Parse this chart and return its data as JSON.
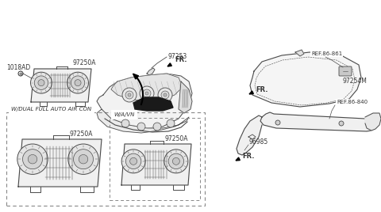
{
  "bg_color": "#ffffff",
  "lc": "#4a4a4a",
  "lc2": "#333333",
  "bc": "#000000",
  "dc": "#888888",
  "parts": {
    "label_97253": "97253",
    "label_97250A": "97250A",
    "label_1018AD": "1018AD",
    "label_97254M": "97254M",
    "label_ref861": "REF.86-861",
    "label_ref840": "REF.86-840",
    "label_96985": "96985",
    "label_dual": "W/DUAL FULL AUTO AIR CON",
    "label_wavn": "W/A/VN",
    "label_fr": "FR.",
    "label_97250A_sub1": "97250A",
    "label_97250A_sub2": "97250A"
  }
}
